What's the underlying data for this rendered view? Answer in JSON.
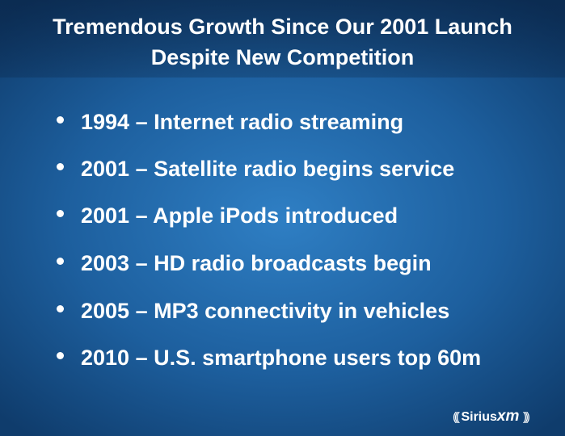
{
  "slide": {
    "title": [
      "Tremendous Growth Since Our 2001 Launch",
      "Despite New Competition"
    ],
    "bullets": [
      "1994 – Internet radio streaming",
      "2001 – Satellite radio begins service",
      "2001 – Apple iPods introduced",
      "2003 – HD radio broadcasts begin",
      "2005 – MP3 connectivity in vehicles",
      "2010 – U.S. smartphone users top 60m"
    ],
    "logo": {
      "name": "Sirius",
      "suffix": "xm"
    }
  }
}
